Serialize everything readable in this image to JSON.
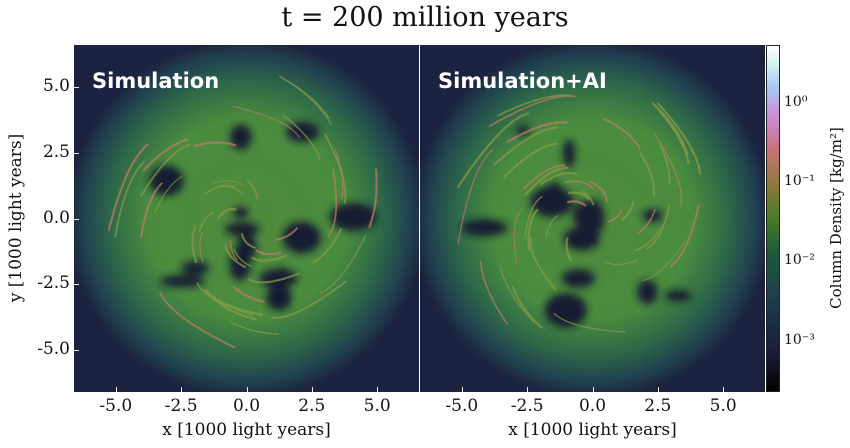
{
  "title": "t = 200 million years",
  "chart_data": {
    "type": "heatmap",
    "title": "t = 200 million years",
    "panels": [
      {
        "label": "Simulation"
      },
      {
        "label": "Simulation+AI"
      }
    ],
    "xlabel": "x [1000 light years]",
    "ylabel": "y [1000 light years]",
    "xlim": [
      -6.6,
      6.6
    ],
    "ylim": [
      -6.6,
      6.6
    ],
    "xticks": [
      "-5.0",
      "-2.5",
      "0.0",
      "2.5",
      "5.0"
    ],
    "yticks": [
      "-5.0",
      "-2.5",
      "0.0",
      "2.5",
      "5.0"
    ],
    "colorbar": {
      "label": "Column Density [kg/m²]",
      "scale": "log",
      "range": [
        0.00023,
        5.6
      ],
      "ticks": [
        {
          "label": "10⁰",
          "value": 1
        },
        {
          "label": "10⁻¹",
          "value": 0.1
        },
        {
          "label": "10⁻²",
          "value": 0.01
        },
        {
          "label": "10⁻³",
          "value": 0.001
        }
      ],
      "colormap_colors": [
        "#000000",
        "#1c3a4a",
        "#1f5a3a",
        "#8f7a3a",
        "#c8707a",
        "#c890d8",
        "#a8c8f0",
        "#ffffff"
      ]
    }
  }
}
